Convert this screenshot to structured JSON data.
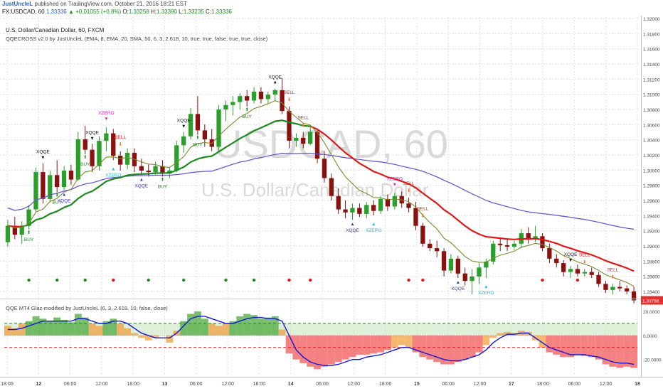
{
  "header": {
    "author": "JustUncleL",
    "published_text": "published on TradingView.com, October 21, 2016 18:21 EST",
    "symbol_info": "FX:USDCAD, 60",
    "last": "1.33336",
    "change": "+0.01055 (+0.8%)",
    "o_label": "O:",
    "o": "1.33258",
    "h_label": "H:",
    "h": "1.33390",
    "l_label": "L:",
    "l": "1.33235",
    "c_label": "C:",
    "c": "1.33336",
    "up_arrow": "▲"
  },
  "main_pane": {
    "title": "U.S. Dollar/Canadian Dollar, 60, FXCM",
    "indicator_title": "QQECROSS v2.0 by JustUncleL (EMA, 8, EMA, 20, SMA, 50, 6, 3, 2.618, 10, true, true, false, true, true, close)",
    "watermark_symbol": "USDCAD, 60",
    "watermark_name": "U.S. Dollar/Canadian Dollar",
    "price_badge": "1.30756",
    "price_ticks": [
      "1.32000",
      "1.31800",
      "1.31600",
      "1.31400",
      "1.31200",
      "1.31000",
      "1.30800",
      "1.30600",
      "1.30400",
      "1.30200",
      "1.30000",
      "1.29800",
      "1.29600",
      "1.29400",
      "1.29200",
      "1.29000",
      "1.28800",
      "1.28600",
      "1.28400"
    ]
  },
  "sub_pane": {
    "title": "QQE MT4 Glaz-modified by JustUncleL (6, 3, 2.618, 10, false, close)",
    "ticks": [
      "20.0000",
      "0.0000",
      "-20.0000"
    ]
  },
  "time_axis": {
    "labels": [
      "18:00",
      "12",
      "06:00",
      "12:00",
      "18:00",
      "13",
      "06:00",
      "12:00",
      "18:00",
      "14",
      "06:00",
      "12:00",
      "18:00",
      "15",
      "06:00",
      "12:00",
      "17",
      "18:00",
      "06:00",
      "12:00",
      "18"
    ]
  },
  "markers": {
    "xqqe": "XQQE",
    "buy": "BUY",
    "sell": "SELL",
    "xzero": "XZERO"
  },
  "colors": {
    "bull": "#2aa02a",
    "bear": "#8b1010",
    "ema_fast": "#7a8a2e",
    "ema_mid_up": "#1f8a1f",
    "ema_mid_down": "#e01818",
    "sma_slow": "#6a5acd",
    "qqe_line": "#1515d6",
    "hist_up": "#4caa3c",
    "hist_down": "#f25858",
    "hist_weak": "#f0a040",
    "badge": "#e03030"
  },
  "chart_data": {
    "type": "candlestick",
    "symbol": "FX:USDCAD",
    "interval": "60",
    "ylim": [
      1.284,
      1.321
    ],
    "candles": [
      [
        1.2908,
        1.2938,
        1.2902,
        1.293
      ],
      [
        1.293,
        1.2942,
        1.2912,
        1.2918
      ],
      [
        1.2918,
        1.2936,
        1.2906,
        1.293
      ],
      [
        1.293,
        1.2958,
        1.2925,
        1.2952
      ],
      [
        1.2952,
        1.3008,
        1.2948,
        1.3002
      ],
      [
        1.3002,
        1.3014,
        1.296,
        1.2966
      ],
      [
        1.2966,
        1.3004,
        1.2962,
        1.2998
      ],
      [
        1.2998,
        1.3018,
        1.2975,
        1.2982
      ],
      [
        1.2982,
        1.301,
        1.2978,
        1.3004
      ],
      [
        1.3004,
        1.3012,
        1.2985,
        1.2992
      ],
      [
        1.2992,
        1.3056,
        1.299,
        1.3046
      ],
      [
        1.3046,
        1.3064,
        1.3026,
        1.3032
      ],
      [
        1.3032,
        1.304,
        1.3002,
        1.301
      ],
      [
        1.301,
        1.305,
        1.3004,
        1.3044
      ],
      [
        1.3044,
        1.3062,
        1.303,
        1.3054
      ],
      [
        1.3054,
        1.306,
        1.3018,
        1.3024
      ],
      [
        1.3024,
        1.303,
        1.3004,
        1.3012
      ],
      [
        1.3012,
        1.3034,
        1.3006,
        1.3028
      ],
      [
        1.3028,
        1.3034,
        1.3002,
        1.301
      ],
      [
        1.301,
        1.302,
        1.2998,
        1.3004
      ],
      [
        1.3004,
        1.3012,
        1.2996,
        1.3002
      ],
      [
        1.3002,
        1.3016,
        1.2998,
        1.301
      ],
      [
        1.301,
        1.3018,
        1.2996,
        1.3
      ],
      [
        1.3,
        1.3008,
        1.2994,
        1.3004
      ],
      [
        1.3004,
        1.3044,
        1.3002,
        1.3038
      ],
      [
        1.3038,
        1.3056,
        1.3028,
        1.305
      ],
      [
        1.305,
        1.3088,
        1.3046,
        1.308
      ],
      [
        1.308,
        1.3104,
        1.3052,
        1.3058
      ],
      [
        1.3058,
        1.3066,
        1.3036,
        1.3046
      ],
      [
        1.3046,
        1.306,
        1.303,
        1.3036
      ],
      [
        1.3036,
        1.3092,
        1.303,
        1.3086
      ],
      [
        1.3086,
        1.3098,
        1.307,
        1.3092
      ],
      [
        1.3092,
        1.3104,
        1.3078,
        1.3096
      ],
      [
        1.3096,
        1.3108,
        1.3086,
        1.3104
      ],
      [
        1.3104,
        1.3112,
        1.309,
        1.3098
      ],
      [
        1.3098,
        1.3116,
        1.3094,
        1.311
      ],
      [
        1.311,
        1.3116,
        1.3094,
        1.31
      ],
      [
        1.31,
        1.311,
        1.3094,
        1.3106
      ],
      [
        1.3106,
        1.3114,
        1.3098,
        1.3112
      ],
      [
        1.3112,
        1.3128,
        1.308,
        1.3084
      ],
      [
        1.3084,
        1.309,
        1.3034,
        1.3044
      ],
      [
        1.3044,
        1.3054,
        1.3036,
        1.3048
      ],
      [
        1.3048,
        1.3056,
        1.3034,
        1.304
      ],
      [
        1.304,
        1.3062,
        1.3038,
        1.3056
      ],
      [
        1.3056,
        1.306,
        1.3014,
        1.302
      ],
      [
        1.302,
        1.303,
        1.2988,
        1.2994
      ],
      [
        1.2994,
        1.3,
        1.2964,
        1.297
      ],
      [
        1.297,
        1.298,
        1.2946,
        1.2952
      ],
      [
        1.2952,
        1.2964,
        1.294,
        1.2948
      ],
      [
        1.2948,
        1.296,
        1.2938,
        1.2954
      ],
      [
        1.2954,
        1.296,
        1.2942,
        1.2946
      ],
      [
        1.2946,
        1.2962,
        1.294,
        1.2958
      ],
      [
        1.2958,
        1.2964,
        1.2944,
        1.295
      ],
      [
        1.295,
        1.297,
        1.2946,
        1.2966
      ],
      [
        1.2966,
        1.2972,
        1.295,
        1.2956
      ],
      [
        1.2956,
        1.2974,
        1.2952,
        1.297
      ],
      [
        1.297,
        1.2976,
        1.2954,
        1.296
      ],
      [
        1.296,
        1.2968,
        1.2948,
        1.2954
      ],
      [
        1.2954,
        1.2962,
        1.2924,
        1.293
      ],
      [
        1.293,
        1.2934,
        1.2902,
        1.2906
      ],
      [
        1.2906,
        1.2912,
        1.2896,
        1.29
      ],
      [
        1.29,
        1.291,
        1.2888,
        1.2896
      ],
      [
        1.2896,
        1.29,
        1.2862,
        1.287
      ],
      [
        1.287,
        1.2892,
        1.2866,
        1.2886
      ],
      [
        1.2886,
        1.289,
        1.286,
        1.2866
      ],
      [
        1.2866,
        1.2874,
        1.285,
        1.2856
      ],
      [
        1.2856,
        1.2872,
        1.2838,
        1.2862
      ],
      [
        1.2862,
        1.288,
        1.2852,
        1.2874
      ],
      [
        1.2874,
        1.2886,
        1.286,
        1.2882
      ],
      [
        1.2882,
        1.291,
        1.2878,
        1.2906
      ],
      [
        1.2906,
        1.2914,
        1.2896,
        1.2904
      ],
      [
        1.2904,
        1.2912,
        1.2896,
        1.2902
      ],
      [
        1.2902,
        1.291,
        1.2898,
        1.2906
      ],
      [
        1.2906,
        1.2926,
        1.29,
        1.292
      ],
      [
        1.292,
        1.2928,
        1.2906,
        1.2912
      ],
      [
        1.2912,
        1.293,
        1.2908,
        1.2916
      ],
      [
        1.2916,
        1.292,
        1.2896,
        1.29
      ],
      [
        1.29,
        1.2906,
        1.288,
        1.2886
      ],
      [
        1.2886,
        1.2892,
        1.2874,
        1.288
      ],
      [
        1.288,
        1.2884,
        1.2862,
        1.2868
      ],
      [
        1.2868,
        1.2876,
        1.286,
        1.2872
      ],
      [
        1.2872,
        1.2878,
        1.2862,
        1.2866
      ],
      [
        1.2866,
        1.2872,
        1.2862,
        1.2868
      ],
      [
        1.2868,
        1.2874,
        1.286,
        1.2864
      ],
      [
        1.2864,
        1.2868,
        1.2848,
        1.2852
      ],
      [
        1.2852,
        1.2856,
        1.284,
        1.2844
      ],
      [
        1.2844,
        1.2852,
        1.2838,
        1.2848
      ],
      [
        1.2848,
        1.2856,
        1.2842,
        1.2846
      ],
      [
        1.2846,
        1.285,
        1.2838,
        1.2842
      ],
      [
        1.2842,
        1.2848,
        1.2826,
        1.283
      ]
    ],
    "qqe_fast": [
      8,
      6,
      10,
      12,
      16,
      14,
      12,
      15,
      13,
      11,
      18,
      15,
      10,
      8,
      12,
      14,
      10,
      6,
      2,
      -2,
      -4,
      -2,
      0,
      -6,
      4,
      12,
      18,
      20,
      14,
      10,
      8,
      10,
      12,
      16,
      18,
      17,
      14,
      15,
      16,
      5,
      -15,
      -20,
      -23,
      -26,
      -28,
      -26,
      -24,
      -22,
      -20,
      -18,
      -16,
      -16,
      -15,
      -14,
      -12,
      -10,
      -8,
      -10,
      -14,
      -18,
      -20,
      -22,
      -24,
      -24,
      -22,
      -20,
      -18,
      -14,
      -8,
      -2,
      2,
      3,
      2,
      4,
      3,
      -4,
      -10,
      -14,
      -16,
      -18,
      -18,
      -16,
      -17,
      -18,
      -20,
      -24,
      -26,
      -27,
      -26,
      -27
    ],
    "qqe_slow": [
      5,
      5,
      6,
      8,
      10,
      12,
      12,
      12,
      12,
      12,
      14,
      14,
      12,
      10,
      10,
      12,
      12,
      10,
      6,
      2,
      0,
      -2,
      -2,
      -2,
      2,
      8,
      14,
      16,
      16,
      14,
      12,
      10,
      10,
      12,
      14,
      15,
      15,
      14,
      14,
      12,
      0,
      -12,
      -18,
      -22,
      -24,
      -25,
      -25,
      -24,
      -22,
      -20,
      -20,
      -18,
      -17,
      -16,
      -14,
      -12,
      -10,
      -10,
      -12,
      -14,
      -16,
      -18,
      -20,
      -21,
      -21,
      -20,
      -18,
      -16,
      -12,
      -6,
      -2,
      1,
      1,
      2,
      2,
      -2,
      -6,
      -10,
      -12,
      -14,
      -16,
      -16,
      -16,
      -17,
      -18,
      -20,
      -22,
      -23,
      -23,
      -24
    ]
  }
}
